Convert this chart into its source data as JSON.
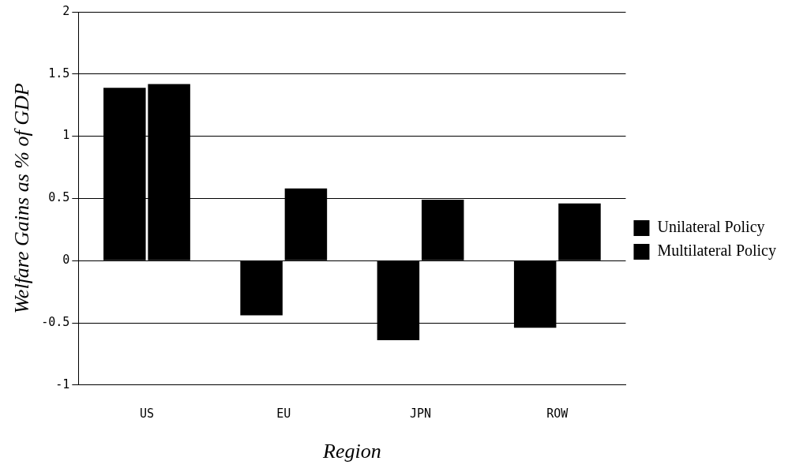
{
  "chart_data": {
    "type": "bar",
    "xlabel": "Region",
    "ylabel": "Welfare Gains as % of GDP",
    "categories": [
      "US",
      "EU",
      "JPN",
      "ROW"
    ],
    "series": [
      {
        "name": "Unilateral Policy",
        "color": "#000000",
        "values": [
          1.39,
          -0.44,
          -0.64,
          -0.54
        ]
      },
      {
        "name": "Multilateral Policy",
        "color": "#000000",
        "values": [
          1.42,
          0.58,
          0.49,
          0.46
        ]
      }
    ],
    "ylim": [
      -1,
      2
    ],
    "yticks": [
      -1,
      -0.5,
      0,
      0.5,
      1,
      1.5,
      2
    ],
    "grid": "y",
    "legend": "right"
  }
}
